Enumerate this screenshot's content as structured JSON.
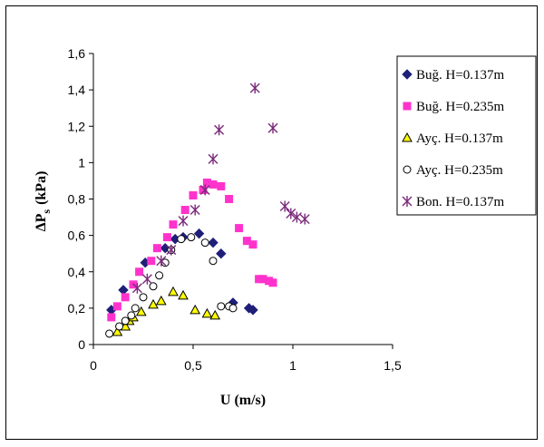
{
  "chart_data": {
    "type": "scatter",
    "xlabel": "U (m/s)",
    "ylabel_main": "ΔP",
    "ylabel_sub": "s",
    "ylabel_unit": "(kPa)",
    "xlim": [
      0,
      1.5
    ],
    "ylim": [
      0,
      1.6
    ],
    "x_ticks": [
      0,
      0.5,
      1,
      1.5
    ],
    "x_tick_labels": [
      "0",
      "0,5",
      "1",
      "1,5"
    ],
    "y_ticks": [
      0,
      0.2,
      0.4,
      0.6,
      0.8,
      1.0,
      1.2,
      1.4,
      1.6
    ],
    "y_tick_labels": [
      "0",
      "0,2",
      "0,4",
      "0,6",
      "0,8",
      "1",
      "1,2",
      "1,4",
      "1,6"
    ],
    "grid": false,
    "legend_position": "right",
    "series": [
      {
        "name": "Buğ. H=0.137m",
        "marker": "diamond",
        "color": "#1f1f7a",
        "points": [
          [
            0.09,
            0.19
          ],
          [
            0.15,
            0.3
          ],
          [
            0.26,
            0.45
          ],
          [
            0.36,
            0.53
          ],
          [
            0.41,
            0.58
          ],
          [
            0.45,
            0.59
          ],
          [
            0.53,
            0.61
          ],
          [
            0.6,
            0.56
          ],
          [
            0.64,
            0.5
          ],
          [
            0.7,
            0.23
          ],
          [
            0.78,
            0.2
          ],
          [
            0.8,
            0.19
          ]
        ]
      },
      {
        "name": "Buğ. H=0.235m",
        "marker": "square",
        "color": "#ff33cc",
        "points": [
          [
            0.09,
            0.15
          ],
          [
            0.12,
            0.21
          ],
          [
            0.16,
            0.26
          ],
          [
            0.2,
            0.33
          ],
          [
            0.23,
            0.4
          ],
          [
            0.29,
            0.46
          ],
          [
            0.32,
            0.53
          ],
          [
            0.37,
            0.59
          ],
          [
            0.4,
            0.66
          ],
          [
            0.46,
            0.74
          ],
          [
            0.5,
            0.82
          ],
          [
            0.55,
            0.85
          ],
          [
            0.57,
            0.89
          ],
          [
            0.6,
            0.88
          ],
          [
            0.64,
            0.87
          ],
          [
            0.68,
            0.8
          ],
          [
            0.73,
            0.64
          ],
          [
            0.77,
            0.57
          ],
          [
            0.8,
            0.55
          ],
          [
            0.83,
            0.36
          ],
          [
            0.85,
            0.36
          ],
          [
            0.88,
            0.35
          ],
          [
            0.9,
            0.34
          ]
        ]
      },
      {
        "name": "Ayç. H=0.137m",
        "marker": "triangle",
        "color": "#ffff00",
        "points": [
          [
            0.12,
            0.07
          ],
          [
            0.16,
            0.1
          ],
          [
            0.18,
            0.13
          ],
          [
            0.2,
            0.15
          ],
          [
            0.24,
            0.18
          ],
          [
            0.3,
            0.22
          ],
          [
            0.34,
            0.24
          ],
          [
            0.4,
            0.29
          ],
          [
            0.45,
            0.27
          ],
          [
            0.51,
            0.19
          ],
          [
            0.57,
            0.17
          ],
          [
            0.61,
            0.16
          ]
        ]
      },
      {
        "name": "Ayç. H=0.235m",
        "marker": "circle",
        "color": "#ffffff",
        "points": [
          [
            0.08,
            0.06
          ],
          [
            0.13,
            0.1
          ],
          [
            0.16,
            0.13
          ],
          [
            0.19,
            0.16
          ],
          [
            0.21,
            0.2
          ],
          [
            0.25,
            0.26
          ],
          [
            0.3,
            0.32
          ],
          [
            0.33,
            0.38
          ],
          [
            0.36,
            0.45
          ],
          [
            0.39,
            0.52
          ],
          [
            0.44,
            0.58
          ],
          [
            0.49,
            0.59
          ],
          [
            0.56,
            0.56
          ],
          [
            0.6,
            0.46
          ],
          [
            0.64,
            0.21
          ],
          [
            0.68,
            0.21
          ],
          [
            0.7,
            0.2
          ]
        ]
      },
      {
        "name": "Bon. H=0.137m",
        "marker": "asterisk",
        "color": "#7a2a7a",
        "points": [
          [
            0.22,
            0.31
          ],
          [
            0.27,
            0.36
          ],
          [
            0.34,
            0.46
          ],
          [
            0.39,
            0.52
          ],
          [
            0.45,
            0.68
          ],
          [
            0.51,
            0.74
          ],
          [
            0.56,
            0.85
          ],
          [
            0.6,
            1.02
          ],
          [
            0.63,
            1.18
          ],
          [
            0.81,
            1.41
          ],
          [
            0.9,
            1.19
          ],
          [
            0.96,
            0.76
          ],
          [
            0.99,
            0.72
          ],
          [
            1.02,
            0.7
          ],
          [
            1.06,
            0.69
          ]
        ]
      }
    ]
  }
}
